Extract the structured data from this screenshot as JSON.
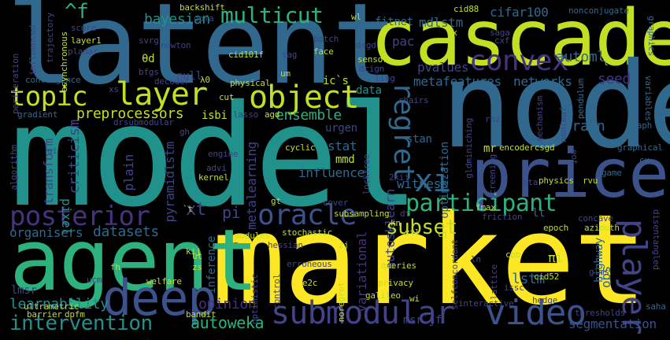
{
  "words": {
    "latent": "latent",
    "cascade": "cascade",
    "node": "node",
    "model": "model",
    "market": "market",
    "agent": "agent",
    "price": "price",
    "deep": "deep",
    "topic": "topic",
    "layer": "layer",
    "object": "object",
    "convex": "convex",
    "regret": "regret",
    "player": "player",
    "submodular": "submodular",
    "video": "video",
    "oracle": "oracle",
    "posterior": "posterior",
    "participant": "participant",
    "xi": "xi",
    "multicut": "multicut",
    "subset": "subset",
    "intervention": "intervention",
    "bayesian": "bayesian",
    "f": "^f",
    "mdlstm": "mdlstm",
    "cifar100": "cifar100",
    "fitnet": "fitnet",
    "automl": "automl",
    "networks": "networks",
    "metafeatures": "metafeatures",
    "pvalues": "pvalues",
    "seed": "seed",
    "ensemble": "ensemble",
    "preprocessors": "preprocessors",
    "isbi": "isbi",
    "urgen": "urgen",
    "stat": "stat",
    "stan": "stan",
    "brain": "brain",
    "influence": "influence",
    "witness": "witness",
    "pi": "pi",
    "organisers": "organisers",
    "datasets": "datasets",
    "learnability": "learnability",
    "autoweka": "autoweka",
    "segmentation": "segmentation",
    "lstm": "lstm",
    "pixel": "pixel",
    "transform": "transform",
    "criticism": "criticism",
    "plain": "plain",
    "metalearning": "metalearning",
    "pyramidlstm": "pyramidlstm",
    "autosklearn": "autosklearn",
    "variational": "variational",
    "optimization": "optimization",
    "highway": "highway",
    "obs": "obs",
    "opinion": "opinion",
    "inference": "inference",
    "data": "data",
    "null": "null",
    "theta_d": "θd",
    "pac": "pac",
    "mmd": "mmd",
    "mr": "mr",
    "xt": "xt",
    "lmsr": "lmsr",
    "msr_jf": "msr`jf",
    "ic": "ic`s",
    "influenced": "influenced",
    "trajectory": "trajectory",
    "backshift": "backshift",
    "dpfa": "dpfa",
    "wl": "wl",
    "cid88": "cid88",
    "nonconjugate": "nonconjugate",
    "graphics": "graphics",
    "score": "score",
    "svrg": "svrg",
    "nx": "nx",
    "saga": "saga",
    "cxf": "cxf",
    "layer1": "layer1",
    "newton": "newton",
    "batch": "batch",
    "dsgd": "dsgd",
    "cid101f": "cid101f",
    "sag": "sag",
    "face": "face",
    "planar": "planar",
    "bfgs": "bfgs",
    "sensor": "sensor",
    "dcign": "dcign",
    "um": "um",
    "convergence": "convergence",
    "lambda0": "λ0",
    "physical": "physical",
    "decoder": "decoder",
    "ling": "ling",
    "cut": "cut",
    "xs": "xs",
    "chairs": "chairs",
    "gradient": "gradient",
    "lasso": "lasso",
    "agd": "agd",
    "drsubmodular": "drsubmodular",
    "rnz": "rnz",
    "nonleaf": "nonleaf",
    "mechanism": "mechanism",
    "pendulum": "pendulum",
    "variables": "variables",
    "graph": "graph",
    "gh": "gh",
    "cyclic": "cyclic",
    "encodercsgd": "encodercsgd",
    "graphical": "graphical",
    "cx": "cx",
    "engine": "engine",
    "advi": "advi",
    "kernel": "kernel",
    "lockfree": "lockfree",
    "gi": "gi",
    "physics": "physics",
    "game": "game",
    "rvu": "rvu",
    "cover": "cover",
    "subsampling": "subsampling",
    "df": "df",
    "fmax": "fmax",
    "kn": "kn",
    "friction": "friction",
    "lt": "lt",
    "concave": "concave",
    "epoch": "epoch",
    "azimuth": "azimuth",
    "disentangled": "disentangled",
    "modules": "modules",
    "stochastic": "stochastic",
    "kij": "kij",
    "zj": "zj",
    "ztl": "ztl",
    "cj": "cj",
    "ut": "ut",
    "erroneous": "erroneous",
    "cpb": "cpb",
    "pi_small": "πi",
    "zs": "zs",
    "queries": "queries",
    "fh": "fh",
    "ucm": "ucm",
    "welfare": "welfare",
    "e2c": "e2c",
    "privacy": "privacy",
    "cid52": "cid52",
    "issc": "issc",
    "hessian": "hessian",
    "galileo": "galileo",
    "wi": "wi",
    "optimistic": "optimistic",
    "ultrametric": "ultrametric",
    "noregret": "noregret",
    "control": "control",
    "interactive": "interactive",
    "hedge": "hedge",
    "saha": "saha",
    "barrier": "barrier",
    "dpfm": "dpfm",
    "bandit": "bandit",
    "thresholds": "thresholds",
    "peiteration": "periteration",
    "asynchronous": "asynchronous",
    "algorithm": "algorithm",
    "twkij": "2kij",
    "gt": "gt",
    "screening": "screening",
    "gldminiching": "gldminiching",
    "eot": "eot",
    "pta": "pta",
    "glms": "glms",
    "selfconcordant": "selfconcordant",
    "lattice": "lattice",
    "ln": "ln",
    "t_small": "`t",
    "t_tiny": "`t"
  },
  "colors": {
    "background": "#000000",
    "yellow": "#fde725",
    "lime": "#c2df23",
    "green": "#2db27d",
    "teal": "#21918c",
    "blue": "#31688e",
    "indigo": "#414487",
    "purple": "#46327e",
    "violet": "#440154",
    "lgreen": "#6ece58",
    "sea": "#1fa187",
    "slate": "#3b528b"
  }
}
